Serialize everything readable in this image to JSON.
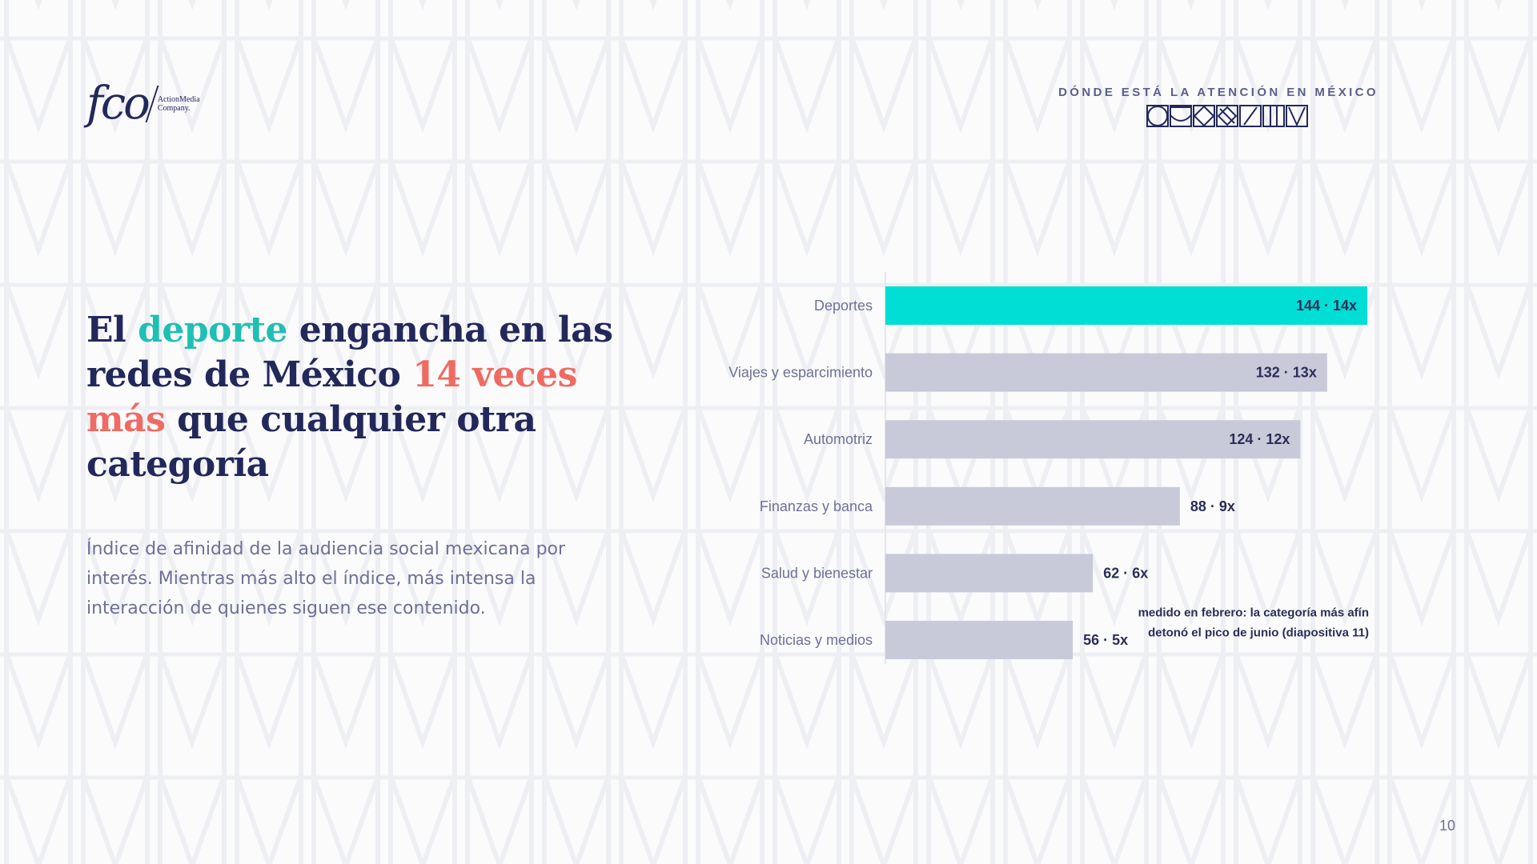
{
  "brand": {
    "logo_text": "fco",
    "logo_sub_line1": "ActionMedia",
    "logo_sub_line2": "Company."
  },
  "header": {
    "tagline": "DÓNDE ESTÁ LA ATENCIÓN EN MÉXICO",
    "glyph_word": "MÉXICO"
  },
  "headline": {
    "part1": "El ",
    "highlight1": "deporte",
    "part2": " engancha en las redes de México ",
    "highlight2": "14 veces más",
    "part3": " que cualquier otra categoría"
  },
  "description": "Índice de afinidad de la audiencia social mexicana por interés. Mientras más alto el índice, más intensa la interacción de quienes siguen ese contenido.",
  "chart_data": {
    "type": "bar",
    "orientation": "horizontal",
    "categories": [
      "Deportes",
      "Viajes y esparcimiento",
      "Automotriz",
      "Finanzas y banca",
      "Salud y bienestar",
      "Noticias y medios"
    ],
    "values": [
      144,
      132,
      124,
      88,
      62,
      56
    ],
    "multipliers": [
      "14x",
      "13x",
      "12x",
      "9x",
      "6x",
      "5x"
    ],
    "value_labels": [
      "144 · 14x",
      "132 · 13x",
      "124 · 12x",
      "88 · 9x",
      "62 · 6x",
      "56 · 5x"
    ],
    "highlight_index": 0,
    "xlim": [
      0,
      144
    ],
    "grid": false,
    "annotation": {
      "line1": "medido en febrero: la categoría más afín",
      "line2": "detonó el pico de junio (diapositiva 11)",
      "near_category": "Salud y bienestar"
    }
  },
  "colors": {
    "highlight_bar": "#00ded6",
    "default_bar": "#c9cad9",
    "navy": "#23285a",
    "teal_accent": "#1fbfb3",
    "coral_accent": "#ef6b62"
  },
  "page_number": "10"
}
